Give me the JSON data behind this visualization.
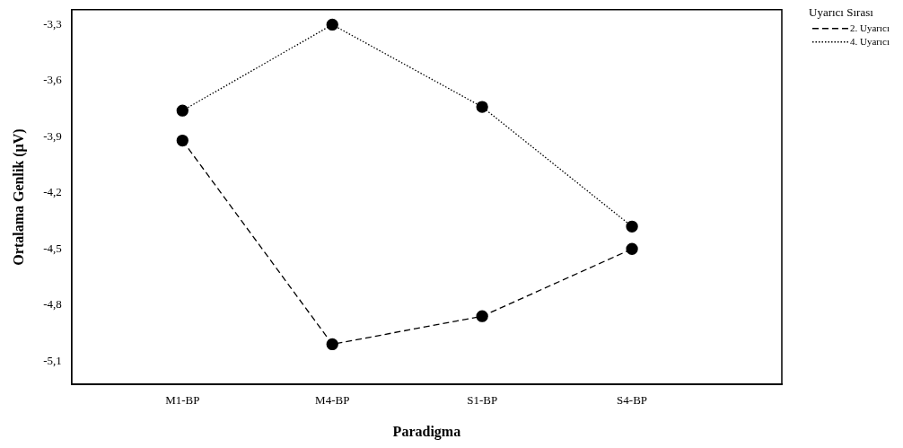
{
  "chart_data": {
    "type": "line",
    "xlabel": "Paradigma",
    "ylabel": "Ortalama Genlik (µV)",
    "legend_title": "Uyarıcı Sırası",
    "legend": "top right",
    "marker": "circle",
    "grid": false,
    "categories": [
      "M1-BP",
      "M4-BP",
      "S1-BP",
      "S4-BP"
    ],
    "ylim": [
      -5.225,
      -3.22
    ],
    "yticks": [
      {
        "value": -3.3,
        "label": "-3,3"
      },
      {
        "value": -3.6,
        "label": "-3,6"
      },
      {
        "value": -3.9,
        "label": "-3,9"
      },
      {
        "value": -4.2,
        "label": "-4,2"
      },
      {
        "value": -4.5,
        "label": "-4,5"
      },
      {
        "value": -4.8,
        "label": "-4,8"
      },
      {
        "value": -5.1,
        "label": "-5,1"
      }
    ],
    "series": [
      {
        "name": "2. Uyarıcı",
        "color": "#000000",
        "line_style": "dashed",
        "values": [
          -3.92,
          -5.01,
          -4.86,
          -4.5
        ]
      },
      {
        "name": "4. Uyarıcı",
        "color": "#000000",
        "line_style": "dotted",
        "values": [
          -3.76,
          -3.3,
          -3.74,
          -4.38
        ]
      }
    ]
  }
}
